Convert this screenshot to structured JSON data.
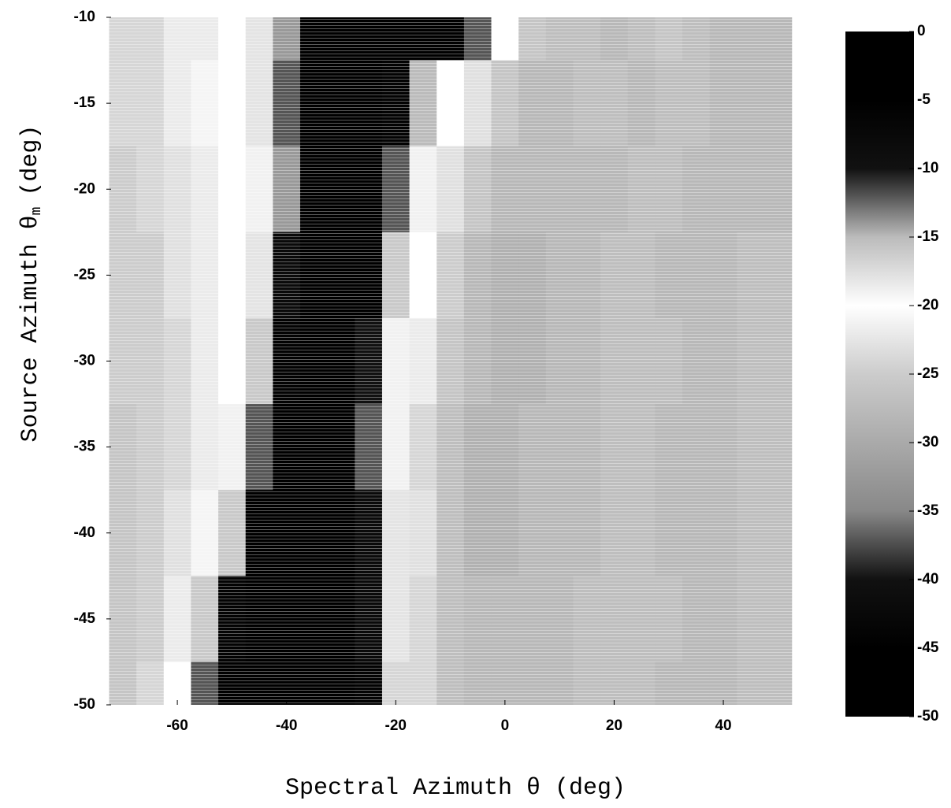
{
  "chart_data": {
    "type": "heatmap",
    "xlabel": "Spectral Azimuth θ (deg)",
    "ylabel": "Source Azimuth θ",
    "ylabel_sub": "m",
    "ylabel_unit": "(deg)",
    "x": [
      -70,
      -65,
      -60,
      -55,
      -50,
      -45,
      -40,
      -35,
      -30,
      -25,
      -20,
      -15,
      -10,
      -5,
      0,
      5,
      10,
      15,
      20,
      25,
      30,
      35,
      40,
      45,
      50
    ],
    "y": [
      -10,
      -15,
      -20,
      -25,
      -30,
      -35,
      -40,
      -45,
      -50
    ],
    "values": [
      [
        -24,
        -24,
        -22,
        -22,
        -20,
        -18,
        -14,
        -5,
        -2,
        -2,
        -3,
        -5,
        -4,
        -12,
        -20,
        -26,
        -27,
        -27,
        -28,
        -27,
        -26,
        -27,
        -28,
        -28,
        -28
      ],
      [
        -24,
        -24,
        -22,
        -21,
        -20,
        -18,
        -12,
        -3,
        -2,
        -2,
        -6,
        -15,
        -20,
        -23,
        -26,
        -28,
        -28,
        -27,
        -27,
        -28,
        -27,
        -27,
        -28,
        -28,
        -28
      ],
      [
        -25,
        -24,
        -23,
        -22,
        -20,
        -19,
        -14,
        -4,
        -2,
        -3,
        -12,
        -19,
        -23,
        -26,
        -28,
        -28,
        -28,
        -28,
        -28,
        -27,
        -27,
        -28,
        -28,
        -28,
        -28
      ],
      [
        -25,
        -25,
        -23,
        -22,
        -20,
        -18,
        -8,
        -3,
        -2,
        -4,
        -16,
        -20,
        -25,
        -28,
        -29,
        -29,
        -28,
        -28,
        -27,
        -27,
        -28,
        -28,
        -28,
        -27,
        -27
      ],
      [
        -25,
        -25,
        -24,
        -22,
        -20,
        -16,
        -6,
        -2,
        -3,
        -10,
        -19,
        -22,
        -26,
        -28,
        -29,
        -29,
        -28,
        -28,
        -27,
        -27,
        -27,
        -28,
        -28,
        -27,
        -27
      ],
      [
        -26,
        -25,
        -24,
        -22,
        -19,
        -12,
        -4,
        -2,
        -3,
        -12,
        -19,
        -24,
        -27,
        -29,
        -29,
        -28,
        -28,
        -28,
        -27,
        -27,
        -28,
        -28,
        -28,
        -27,
        -27
      ],
      [
        -26,
        -25,
        -23,
        -21,
        -16,
        -5,
        -3,
        -2,
        -3,
        -8,
        -18,
        -23,
        -27,
        -29,
        -29,
        -28,
        -28,
        -28,
        -27,
        -27,
        -28,
        -28,
        -28,
        -27,
        -27
      ],
      [
        -26,
        -25,
        -22,
        -16,
        -6,
        -3,
        -2,
        -3,
        -4,
        -8,
        -18,
        -24,
        -27,
        -28,
        -28,
        -28,
        -28,
        -27,
        -27,
        -27,
        -27,
        -28,
        -28,
        -27,
        -27
      ],
      [
        -26,
        -24,
        -20,
        -12,
        -4,
        -2,
        -2,
        -3,
        -4,
        -6,
        -17,
        -24,
        -27,
        -28,
        -28,
        -28,
        -28,
        -27,
        -27,
        -27,
        -28,
        -28,
        -28,
        -27,
        -27
      ]
    ],
    "xlim": [
      -73,
      55
    ],
    "xticks": [
      -60,
      -40,
      -20,
      0,
      20,
      40
    ],
    "ylim": [
      -50,
      -10
    ],
    "yticks": [
      -10,
      -15,
      -20,
      -25,
      -30,
      -35,
      -40,
      -45,
      -50
    ],
    "clim": [
      -50,
      0
    ],
    "cticks": [
      0,
      -5,
      -10,
      -15,
      -20,
      -25,
      -30,
      -35,
      -40,
      -45,
      -50
    ],
    "colormap": [
      "#000000",
      "#000000",
      "#111111",
      "#888888",
      "#aaaaaa",
      "#cccccc",
      "#ffffff",
      "#bbbbbb",
      "#111111",
      "#000000",
      "#000000"
    ]
  }
}
